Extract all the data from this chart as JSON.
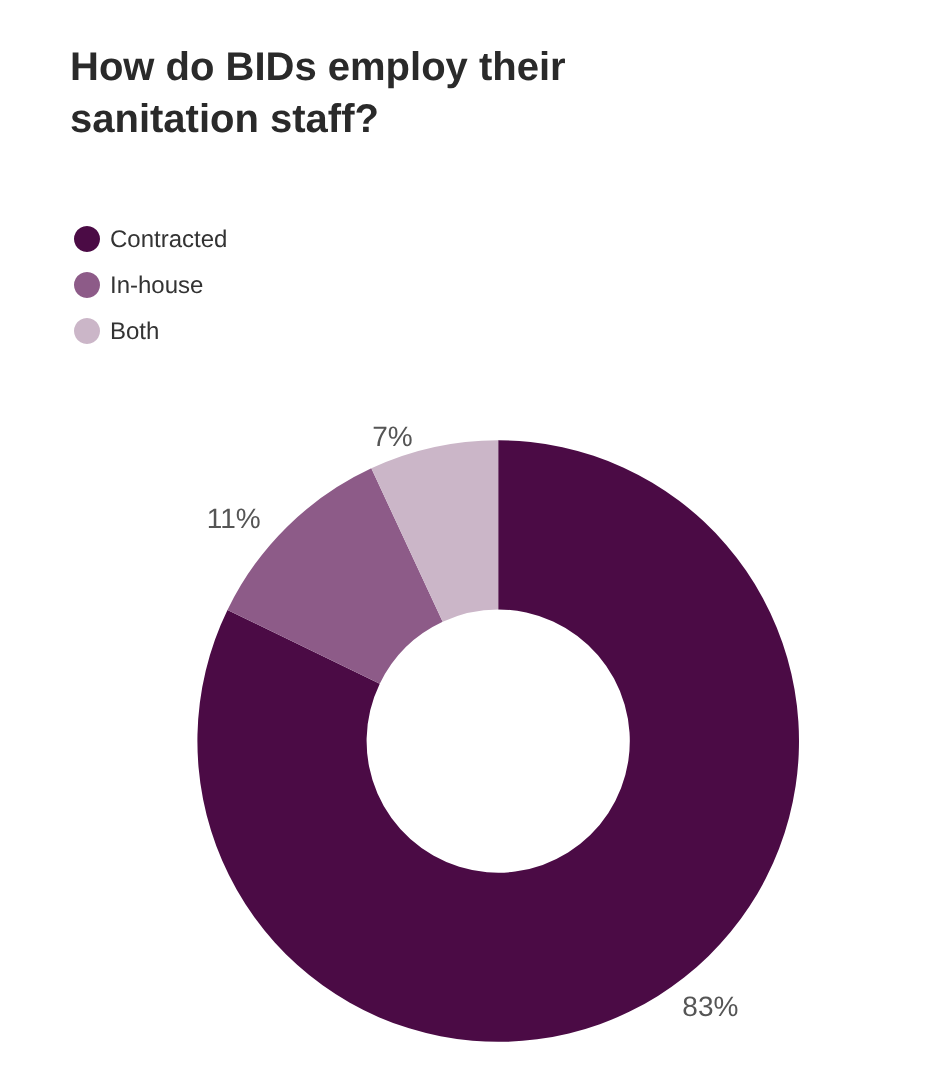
{
  "chart_data": {
    "type": "donut",
    "title": "How do BIDs employ their sanitation staff?",
    "categories": [
      "Contracted",
      "In-house",
      "Both"
    ],
    "values": [
      83,
      11,
      7
    ],
    "value_labels": [
      "83%",
      "11%",
      "7%"
    ],
    "colors": [
      "#4b0b45",
      "#8d5b88",
      "#cbb6c8"
    ],
    "legend": "top left"
  }
}
